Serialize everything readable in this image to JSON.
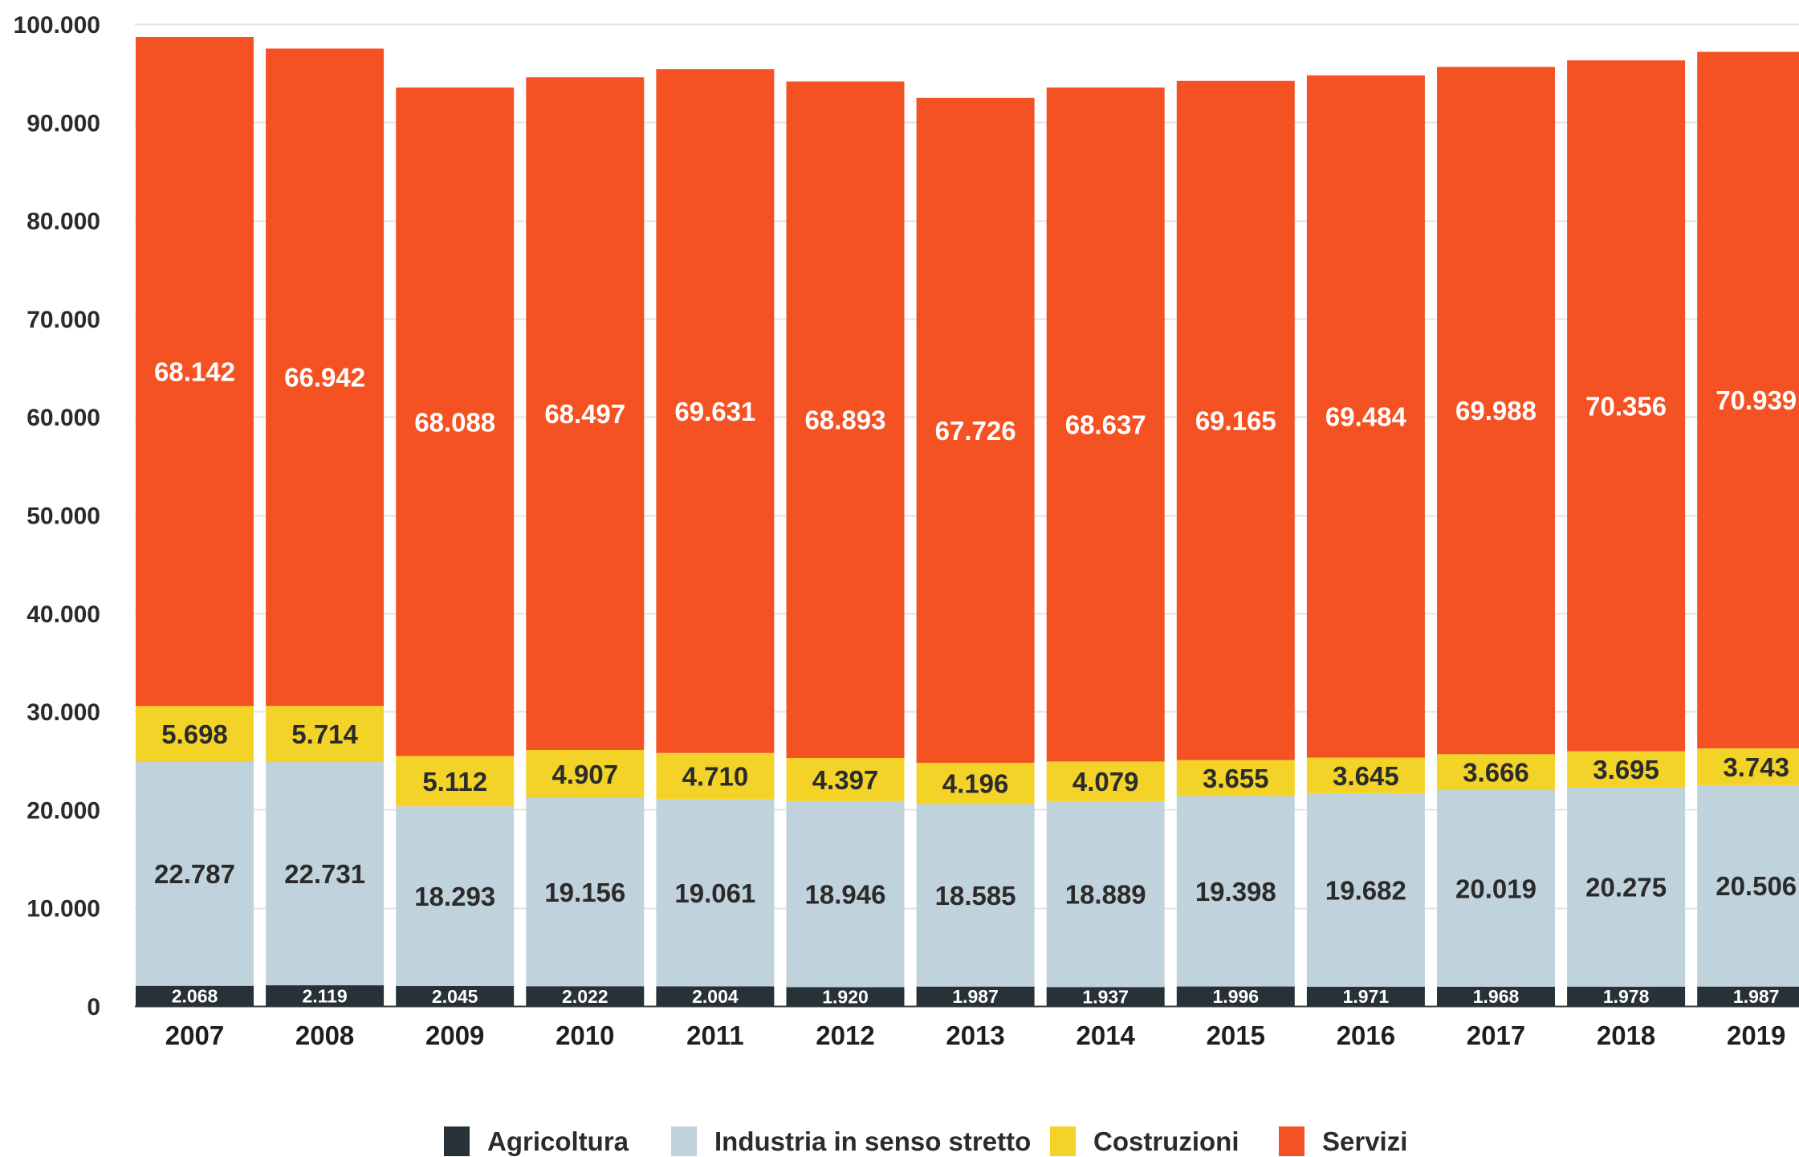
{
  "chart_data": {
    "type": "bar",
    "stacked": true,
    "categories": [
      "2007",
      "2008",
      "2009",
      "2010",
      "2011",
      "2012",
      "2013",
      "2014",
      "2015",
      "2016",
      "2017",
      "2018",
      "2019"
    ],
    "series": [
      {
        "name": "Agricoltura",
        "color": "#263238",
        "label_color": "#ffffff",
        "values": [
          2068,
          2119,
          2045,
          2022,
          2004,
          1920,
          1987,
          1937,
          1996,
          1971,
          1968,
          1978,
          1987
        ],
        "labels": [
          "2.068",
          "2.119",
          "2.045",
          "2.022",
          "2.004",
          "1.920",
          "1.987",
          "1.937",
          "1.996",
          "1.971",
          "1.968",
          "1.978",
          "1.987"
        ]
      },
      {
        "name": "Industria in senso stretto",
        "color": "#c0d2db",
        "label_color": "#2b2b2b",
        "values": [
          22787,
          22731,
          18293,
          19156,
          19061,
          18946,
          18585,
          18889,
          19398,
          19682,
          20019,
          20275,
          20506
        ],
        "labels": [
          "22.787",
          "22.731",
          "18.293",
          "19.156",
          "19.061",
          "18.946",
          "18.585",
          "18.889",
          "19.398",
          "19.682",
          "20.019",
          "20.275",
          "20.506"
        ]
      },
      {
        "name": "Costruzioni",
        "color": "#f3d328",
        "label_color": "#2b2b2b",
        "values": [
          5698,
          5714,
          5112,
          4907,
          4710,
          4397,
          4196,
          4079,
          3655,
          3645,
          3666,
          3695,
          3743
        ],
        "labels": [
          "5.698",
          "5.714",
          "5.112",
          "4.907",
          "4.710",
          "4.397",
          "4.196",
          "4.079",
          "3.655",
          "3.645",
          "3.666",
          "3.695",
          "3.743"
        ]
      },
      {
        "name": "Servizi",
        "color": "#f55223",
        "label_color": "#ffffff",
        "values": [
          68142,
          66942,
          68088,
          68497,
          69631,
          68893,
          67726,
          68637,
          69165,
          69484,
          69988,
          70356,
          70939
        ],
        "labels": [
          "68.142",
          "66.942",
          "68.088",
          "68.497",
          "69.631",
          "68.893",
          "67.726",
          "68.637",
          "69.165",
          "69.484",
          "69.988",
          "70.356",
          "70.939"
        ]
      }
    ],
    "yticks": [
      0,
      10000,
      20000,
      30000,
      40000,
      50000,
      60000,
      70000,
      80000,
      90000,
      100000
    ],
    "ytick_labels": [
      "0",
      "10.000",
      "20.000",
      "30.000",
      "40.000",
      "50.000",
      "60.000",
      "70.000",
      "80.000",
      "90.000",
      "100.000"
    ],
    "ylim": [
      0,
      100000
    ],
    "grid": true,
    "grid_color": "#e3e3e3",
    "legend_position": "bottom",
    "title": "",
    "xlabel": "",
    "ylabel": ""
  }
}
